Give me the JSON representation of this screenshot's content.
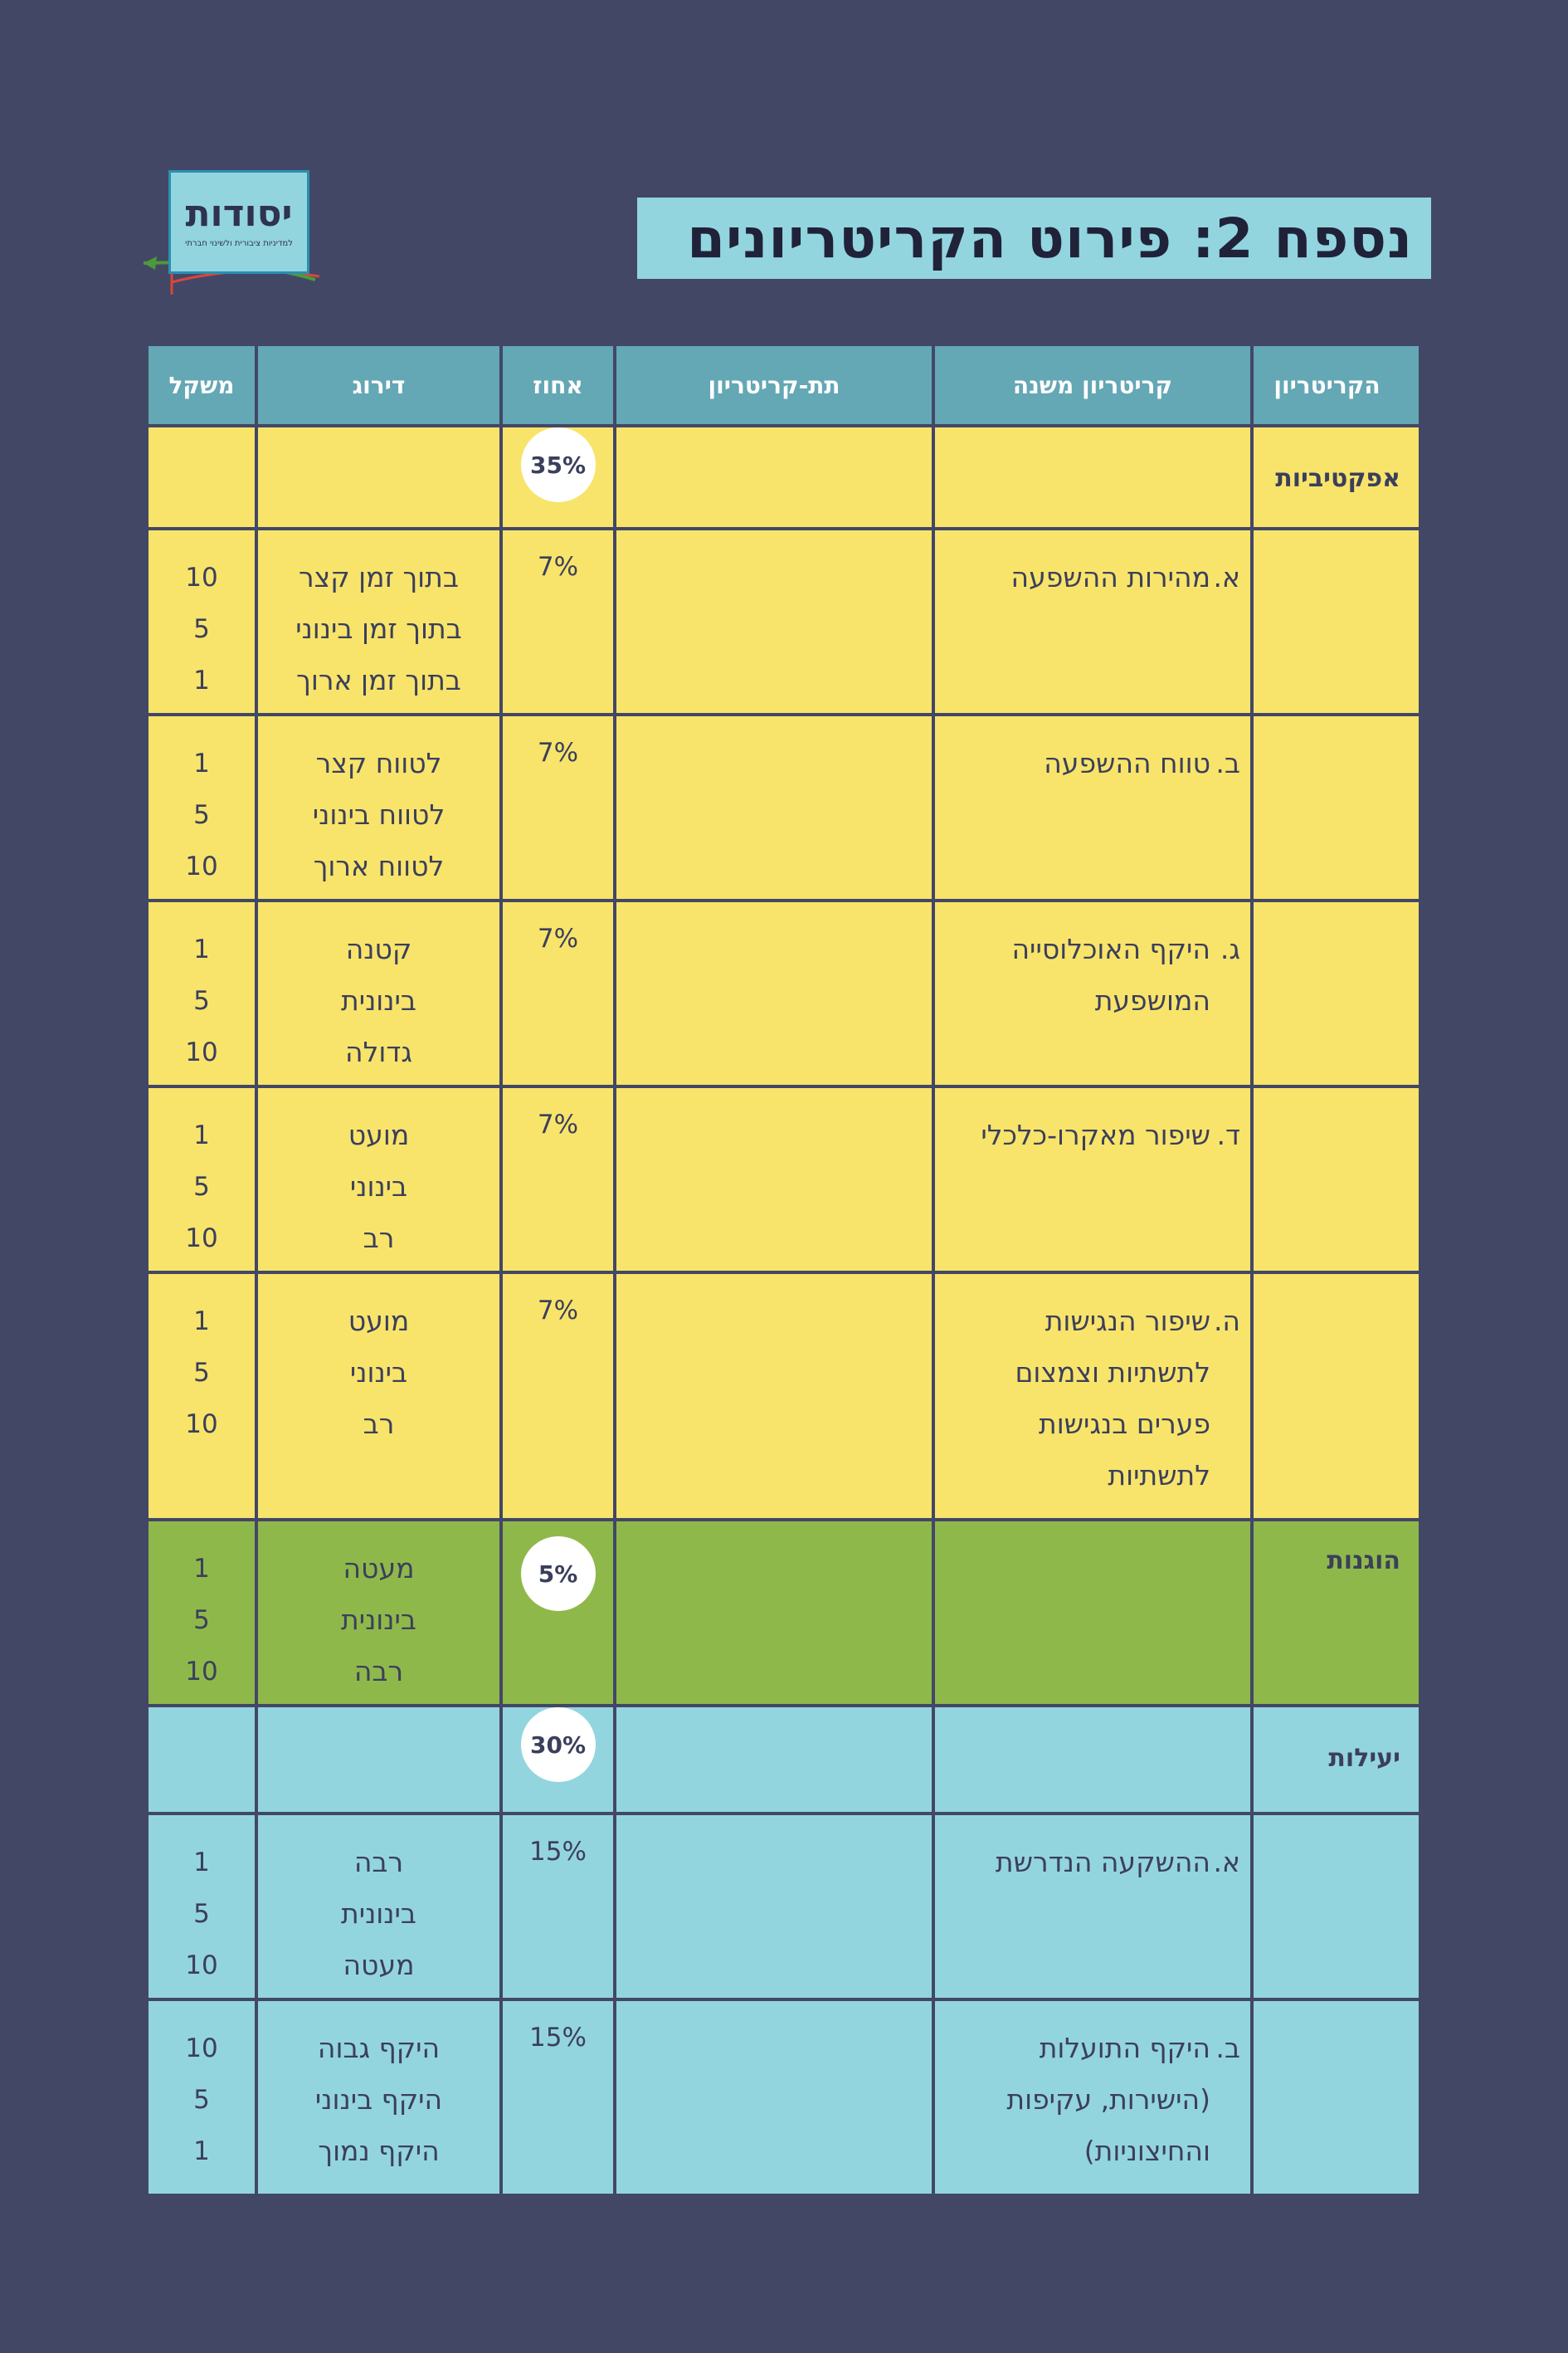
{
  "logo": {
    "word": "יסודות",
    "tagline": "למדיניות ציבורית ולשינוי חברתי"
  },
  "title": "נספח 2: פירוט הקריטריונים",
  "table": {
    "headers": {
      "criterion": "הקריטריון",
      "secondary": "קריטריון משנה",
      "sub": "תת-קריטריון",
      "percent": "אחוז",
      "ranking": "דירוג",
      "weight": "משקל"
    },
    "groups": [
      {
        "name": "אפקטיביות",
        "percent": "35%",
        "color": "#f8e46a",
        "rows": [
          {
            "letter": "א.",
            "text": "מהירות ההשפעה",
            "percent": "7%",
            "ranks": [
              "בתוך זמן קצר",
              "בתוך זמן בינוני",
              "בתוך זמן ארוך"
            ],
            "weights": [
              "10",
              "5",
              "1"
            ]
          },
          {
            "letter": "ב.",
            "text": "טווח ההשפעה",
            "percent": "7%",
            "ranks": [
              "לטווח קצר",
              "לטווח בינוני",
              "לטווח ארוך"
            ],
            "weights": [
              "1",
              "5",
              "10"
            ]
          },
          {
            "letter": "ג.",
            "text": "היקף האוכלוסייה המושפעת",
            "percent": "7%",
            "ranks": [
              "קטנה",
              "בינונית",
              "גדולה"
            ],
            "weights": [
              "1",
              "5",
              "10"
            ]
          },
          {
            "letter": "ד.",
            "text": "שיפור מאקרו-כלכלי",
            "percent": "7%",
            "ranks": [
              "מועט",
              "בינוני",
              "רב"
            ],
            "weights": [
              "1",
              "5",
              "10"
            ]
          },
          {
            "letter": "ה.",
            "text": "שיפור הנגישות לתשתיות וצמצום פערים בנגישות לתשתיות",
            "percent": "7%",
            "ranks": [
              "מועט",
              "בינוני",
              "רב"
            ],
            "weights": [
              "1",
              "5",
              "10"
            ]
          }
        ]
      },
      {
        "name": "הוגנות",
        "percent": "5%",
        "color": "#8fb84a",
        "ranks": [
          "מעטה",
          "בינונית",
          "רבה"
        ],
        "weights": [
          "1",
          "5",
          "10"
        ]
      },
      {
        "name": "יעילות",
        "percent": "30%",
        "color": "#93d5df",
        "rows": [
          {
            "letter": "א.",
            "text": "ההשקעה הנדרשת",
            "percent": "15%",
            "ranks": [
              "רבה",
              "בינונית",
              "מעטה"
            ],
            "weights": [
              "1",
              "5",
              "10"
            ]
          },
          {
            "letter": "ב.",
            "text": "היקף התועלות (הישירות, עקיפות והחיצוניות)",
            "percent": "15%",
            "ranks": [
              "היקף גבוה",
              "היקף בינוני",
              "היקף נמוך"
            ],
            "weights": [
              "10",
              "5",
              "1"
            ]
          }
        ]
      }
    ]
  }
}
